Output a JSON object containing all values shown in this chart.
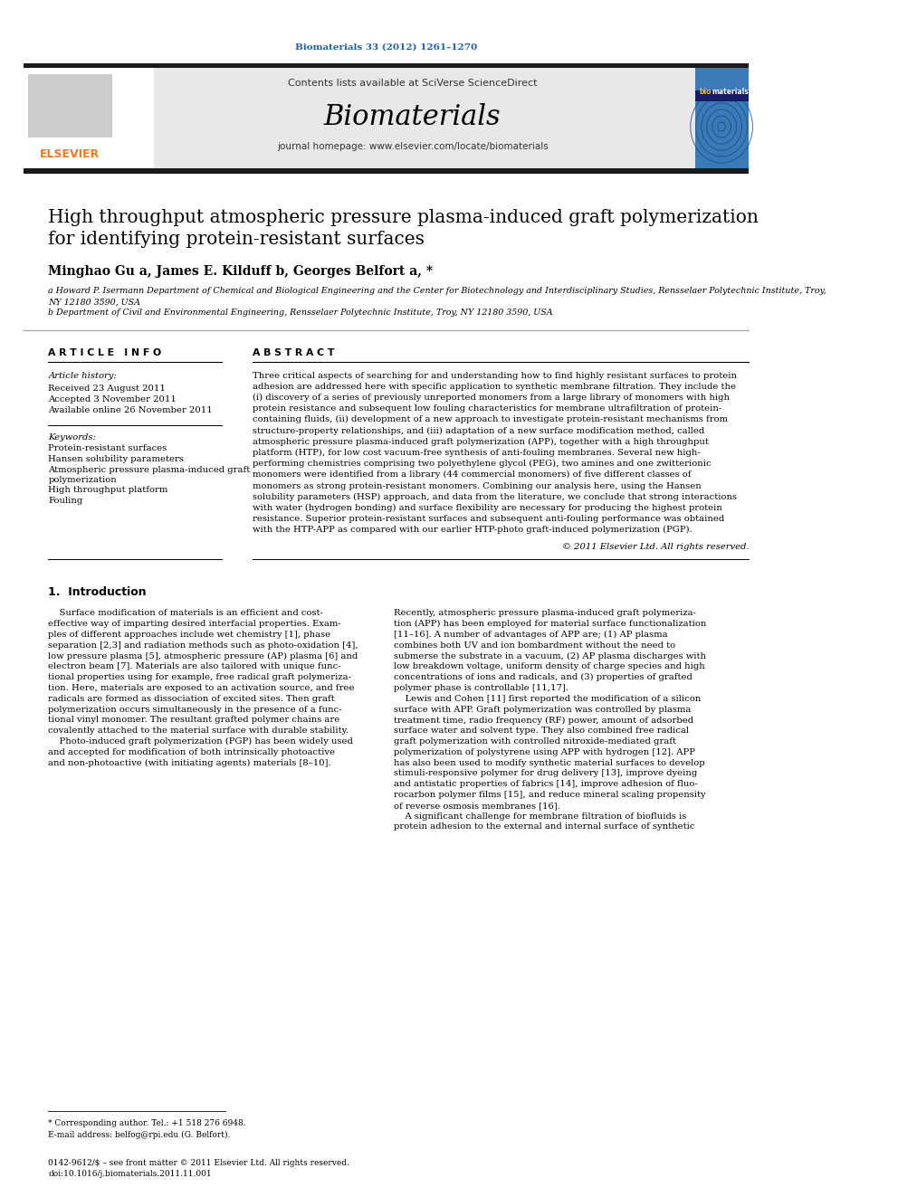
{
  "journal_ref": "Biomaterials 33 (2012) 1261–1270",
  "contents_text": "Contents lists available at SciVerse ScienceDirect",
  "journal_name": "Biomaterials",
  "homepage_text": "journal homepage: www.elsevier.com/locate/biomaterials",
  "title_line1": "High throughput atmospheric pressure plasma-induced graft polymerization",
  "title_line2": "for identifying protein-resistant surfaces",
  "authors": "Minghao Gu a, James E. Kilduff b, Georges Belfort a, *",
  "affil_a": "a Howard P. Isermann Department of Chemical and Biological Engineering and the Center for Biotechnology and Interdisciplinary Studies, Rensselaer Polytechnic Institute, Troy,",
  "affil_a2": "NY 12180 3590, USA",
  "affil_b": "b Department of Civil and Environmental Engineering, Rensselaer Polytechnic Institute, Troy, NY 12180 3590, USA",
  "section_article_info": "A R T I C L E   I N F O",
  "section_abstract": "A B S T R A C T",
  "article_history_label": "Article history:",
  "received": "Received 23 August 2011",
  "accepted": "Accepted 3 November 2011",
  "available": "Available online 26 November 2011",
  "keywords_label": "Keywords:",
  "keywords": [
    "Protein-resistant surfaces",
    "Hansen solubility parameters",
    "Atmospheric pressure plasma-induced graft",
    "polymerization",
    "High throughput platform",
    "Fouling"
  ],
  "copyright": "© 2011 Elsevier Ltd. All rights reserved.",
  "intro_section": "1.  Introduction",
  "footnote_star": "* Corresponding author. Tel.: +1 518 276 6948.",
  "footnote_email": "E-mail address: belfog@rpi.edu (G. Belfort).",
  "footer_issn": "0142-9612/$ – see front matter © 2011 Elsevier Ltd. All rights reserved.",
  "footer_doi": "doi:10.1016/j.biomaterials.2011.11.001",
  "bg_color": "#ffffff",
  "header_bg": "#e8e8e8",
  "dark_bar_color": "#1a1a1a",
  "elsevier_orange": "#f47920",
  "link_blue": "#1f5fa6",
  "title_color": "#000000",
  "text_color": "#000000",
  "abstract_lines": [
    "Three critical aspects of searching for and understanding how to find highly resistant surfaces to protein",
    "adhesion are addressed here with specific application to synthetic membrane filtration. They include the",
    "(i) discovery of a series of previously unreported monomers from a large library of monomers with high",
    "protein resistance and subsequent low fouling characteristics for membrane ultrafiltration of protein-",
    "containing fluids, (ii) development of a new approach to investigate protein-resistant mechanisms from",
    "structure-property relationships, and (iii) adaptation of a new surface modification method, called",
    "atmospheric pressure plasma-induced graft polymerization (APP), together with a high throughput",
    "platform (HTP), for low cost vacuum-free synthesis of anti-fouling membranes. Several new high-",
    "performing chemistries comprising two polyethylene glycol (PEG), two amines and one zwitterionic",
    "monomers were identified from a library (44 commercial monomers) of five different classes of",
    "monomers as strong protein-resistant monomers. Combining our analysis here, using the Hansen",
    "solubility parameters (HSP) approach, and data from the literature, we conclude that strong interactions",
    "with water (hydrogen bonding) and surface flexibility are necessary for producing the highest protein",
    "resistance. Superior protein-resistant surfaces and subsequent anti-fouling performance was obtained",
    "with the HTP-APP as compared with our earlier HTP-photo graft-induced polymerization (PGP)."
  ],
  "intro_col1": [
    "    Surface modification of materials is an efficient and cost-",
    "effective way of imparting desired interfacial properties. Exam-",
    "ples of different approaches include wet chemistry [1], phase",
    "separation [2,3] and radiation methods such as photo-oxidation [4],",
    "low pressure plasma [5], atmospheric pressure (AP) plasma [6] and",
    "electron beam [7]. Materials are also tailored with unique func-",
    "tional properties using for example, free radical graft polymeriza-",
    "tion. Here, materials are exposed to an activation source, and free",
    "radicals are formed as dissociation of excited sites. Then graft",
    "polymerization occurs simultaneously in the presence of a func-",
    "tional vinyl monomer. The resultant grafted polymer chains are",
    "covalently attached to the material surface with durable stability.",
    "    Photo-induced graft polymerization (PGP) has been widely used",
    "and accepted for modification of both intrinsically photoactive",
    "and non-photoactive (with initiating agents) materials [8–10]."
  ],
  "intro_col2": [
    "Recently, atmospheric pressure plasma-induced graft polymeriza-",
    "tion (APP) has been employed for material surface functionalization",
    "[11–16]. A number of advantages of APP are; (1) AP plasma",
    "combines both UV and ion bombardment without the need to",
    "submerse the substrate in a vacuum, (2) AP plasma discharges with",
    "low breakdown voltage, uniform density of charge species and high",
    "concentrations of ions and radicals, and (3) properties of grafted",
    "polymer phase is controllable [11,17].",
    "    Lewis and Cohen [11] first reported the modification of a silicon",
    "surface with APP. Graft polymerization was controlled by plasma",
    "treatment time, radio frequency (RF) power, amount of adsorbed",
    "surface water and solvent type. They also combined free radical",
    "graft polymerization with controlled nitroxide-mediated graft",
    "polymerization of polystyrene using APP with hydrogen [12]. APP",
    "has also been used to modify synthetic material surfaces to develop",
    "stimuli-responsive polymer for drug delivery [13], improve dyeing",
    "and antistatic properties of fabrics [14], improve adhesion of fluo-",
    "rocarbon polymer films [15], and reduce mineral scaling propensity",
    "of reverse osmosis membranes [16].",
    "    A significant challenge for membrane filtration of biofluids is",
    "protein adhesion to the external and internal surface of synthetic"
  ]
}
